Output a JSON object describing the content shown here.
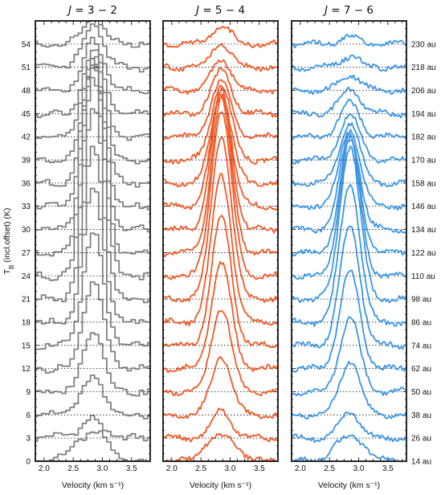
{
  "chart_data": {
    "type": "line",
    "panels": [
      {
        "title": "J = 3 − 2",
        "transition": "3-2",
        "color": "#808080",
        "line_style": "steps",
        "peak_profile": [
          3.2,
          2.4,
          4.9,
          8.2,
          11.5,
          14.6,
          17.2,
          19.6,
          22.2,
          22.6,
          21.0,
          18.8,
          15.7,
          12.5,
          10.6,
          8.0,
          6.4,
          5.4,
          3.6,
          3.3,
          2.4
        ]
      },
      {
        "title": "J = 5 − 4",
        "transition": "5-4",
        "color": "#f05a28",
        "line_style": "line+markers",
        "peak_profile": [
          3.0,
          3.5,
          7.5,
          10.8,
          13.6,
          16.5,
          19.0,
          21.2,
          21.4,
          19.8,
          17.9,
          14.7,
          11.5,
          9.6,
          7.3,
          5.5,
          4.0,
          3.0,
          2.2,
          1.4,
          1.0
        ]
      },
      {
        "title": "J = 7 − 6",
        "transition": "7-6",
        "color": "#3c96e6",
        "line_style": "line+markers",
        "peak_profile": [
          2.8,
          3.4,
          7.0,
          9.6,
          12.5,
          15.4,
          17.9,
          19.8,
          17.7,
          14.7,
          12.1,
          9.9,
          7.9,
          5.8,
          4.4,
          3.2,
          2.1,
          1.4,
          1.0,
          0.7,
          0.5
        ]
      }
    ],
    "offsets": [
      0,
      3,
      6,
      9,
      12,
      15,
      18,
      21,
      24,
      27,
      30,
      33,
      36,
      39,
      42,
      45,
      48,
      51,
      54
    ],
    "radii": [
      "14 au",
      "26 au",
      "38 au",
      "50 au",
      "62 au",
      "74 au",
      "86 au",
      "98 au",
      "110 au",
      "122 au",
      "134 au",
      "146 au",
      "158 au",
      "170 au",
      "182 au",
      "194 au",
      "206 au",
      "218 au",
      "230 au"
    ],
    "line_center_kms": 2.85,
    "xlim": [
      1.85,
      3.82
    ],
    "ylim": [
      0,
      57
    ],
    "x_ticks": [
      "2.0",
      "2.5",
      "3.0",
      "3.5"
    ],
    "y_ticks": [
      "0",
      "3",
      "6",
      "9",
      "12",
      "15",
      "18",
      "21",
      "24",
      "27",
      "30",
      "33",
      "36",
      "39",
      "42",
      "45",
      "48",
      "51",
      "54"
    ],
    "xlabel": "Velocity   (km s⁻¹)",
    "ylabel": "T_B  (incl.offset)   (K)",
    "baseline_style": "dotted",
    "grid": false
  }
}
